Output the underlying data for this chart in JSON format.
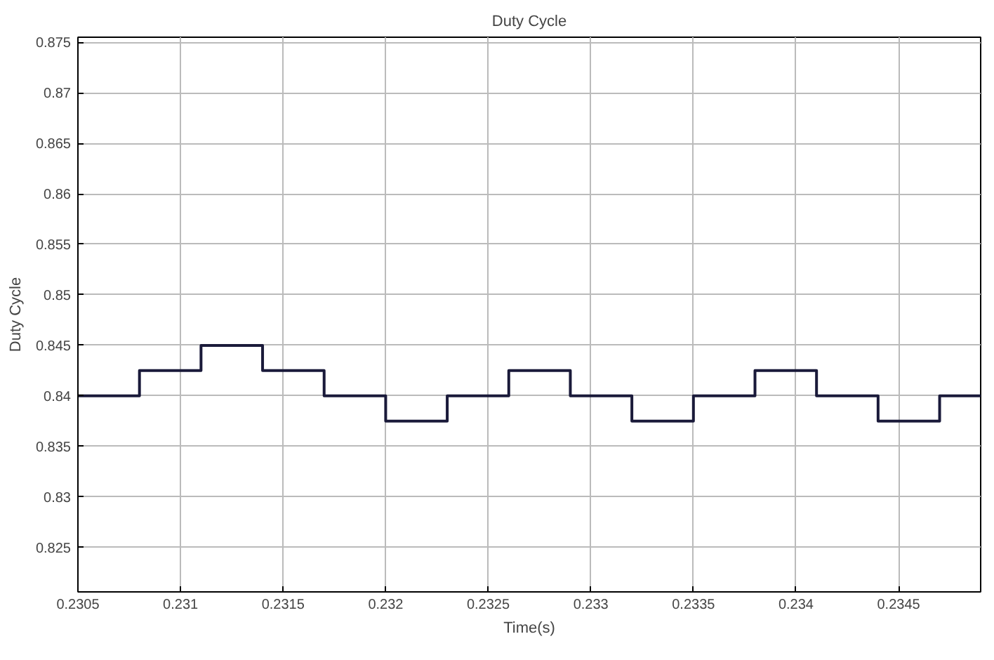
{
  "chart_data": {
    "type": "step",
    "title": "Duty Cycle",
    "xlabel": "Time(s)",
    "ylabel": "Duty Cycle",
    "x": [
      0.2305,
      0.2308,
      0.2311,
      0.2314,
      0.2317,
      0.232,
      0.2323,
      0.2326,
      0.2329,
      0.2332,
      0.2335,
      0.2338,
      0.2341,
      0.2344,
      0.2347,
      0.2349
    ],
    "series": [
      {
        "color": "#1a1a3a",
        "values": [
          0.84,
          0.8425,
          0.845,
          0.8425,
          0.84,
          0.8375,
          0.84,
          0.8425,
          0.84,
          0.8375,
          0.84,
          0.8425,
          0.84,
          0.8375,
          0.84,
          0.84
        ]
      }
    ],
    "xlim": [
      0.2305,
      0.2349
    ],
    "ylim": [
      0.8206,
      0.8755
    ],
    "xticks": [
      0.2305,
      0.231,
      0.2315,
      0.232,
      0.2325,
      0.233,
      0.2335,
      0.234,
      0.2345
    ],
    "yticks": [
      0.825,
      0.83,
      0.835,
      0.84,
      0.845,
      0.85,
      0.855,
      0.86,
      0.865,
      0.87,
      0.875
    ],
    "grid": true
  }
}
